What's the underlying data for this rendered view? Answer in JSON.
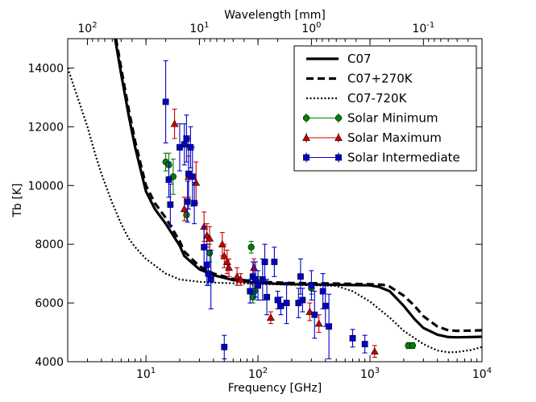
{
  "chart_data": {
    "type": "scatter",
    "title": "",
    "xlabel": "Frequency [GHz]",
    "ylabel": "Tb [K]",
    "top_xlabel": "Wavelength [mm]",
    "xscale": "log",
    "xlim": [
      2,
      10000
    ],
    "ylim": [
      4000,
      15000
    ],
    "x_ticks": [
      {
        "v": 10,
        "base": "10",
        "exp": "1"
      },
      {
        "v": 100,
        "base": "10",
        "exp": "2"
      },
      {
        "v": 1000,
        "base": "10",
        "exp": "3"
      },
      {
        "v": 10000,
        "base": "10",
        "exp": "4"
      }
    ],
    "top_ticks": [
      {
        "f": 3,
        "base": "10",
        "exp": "2"
      },
      {
        "f": 30,
        "base": "10",
        "exp": "1"
      },
      {
        "f": 300,
        "base": "10",
        "exp": "0"
      },
      {
        "f": 3000,
        "base": "10",
        "exp": "-1"
      }
    ],
    "y_ticks": [
      4000,
      6000,
      8000,
      10000,
      12000,
      14000
    ],
    "y_tick_labels": [
      "4000",
      "6000",
      "8000",
      "10000",
      "12000",
      "14000"
    ],
    "legend_position": "top-right",
    "curves": [
      {
        "name": "C07",
        "style": "solid",
        "points": [
          [
            5.3,
            15000
          ],
          [
            6,
            13800
          ],
          [
            7,
            12400
          ],
          [
            8,
            11300
          ],
          [
            10,
            9800
          ],
          [
            12,
            9200
          ],
          [
            15,
            8700
          ],
          [
            20,
            7950
          ],
          [
            22,
            7600
          ],
          [
            30,
            7150
          ],
          [
            40,
            6950
          ],
          [
            60,
            6780
          ],
          [
            100,
            6680
          ],
          [
            200,
            6640
          ],
          [
            500,
            6620
          ],
          [
            1000,
            6600
          ],
          [
            1200,
            6550
          ],
          [
            1500,
            6400
          ],
          [
            2000,
            5900
          ],
          [
            2500,
            5450
          ],
          [
            3000,
            5150
          ],
          [
            4000,
            4920
          ],
          [
            5000,
            4840
          ],
          [
            6000,
            4830
          ],
          [
            8000,
            4840
          ],
          [
            10000,
            4850
          ]
        ]
      },
      {
        "name": "C07+270K",
        "style": "dashed",
        "points": [
          [
            5.4,
            15000
          ],
          [
            6,
            14000
          ],
          [
            7,
            12600
          ],
          [
            8,
            11500
          ],
          [
            10,
            10000
          ],
          [
            12,
            9400
          ],
          [
            15,
            8900
          ],
          [
            20,
            8100
          ],
          [
            22,
            7750
          ],
          [
            30,
            7250
          ],
          [
            40,
            7000
          ],
          [
            60,
            6820
          ],
          [
            100,
            6720
          ],
          [
            200,
            6680
          ],
          [
            500,
            6660
          ],
          [
            1000,
            6640
          ],
          [
            1300,
            6620
          ],
          [
            1500,
            6560
          ],
          [
            2000,
            6250
          ],
          [
            2500,
            5900
          ],
          [
            3000,
            5550
          ],
          [
            4000,
            5200
          ],
          [
            5000,
            5070
          ],
          [
            6000,
            5050
          ],
          [
            8000,
            5060
          ],
          [
            10000,
            5070
          ]
        ]
      },
      {
        "name": "C07-720K",
        "style": "dotted",
        "points": [
          [
            2,
            14000
          ],
          [
            2.5,
            12900
          ],
          [
            3,
            12000
          ],
          [
            3.5,
            11100
          ],
          [
            4,
            10400
          ],
          [
            5,
            9400
          ],
          [
            6,
            8700
          ],
          [
            7,
            8200
          ],
          [
            8,
            7900
          ],
          [
            10,
            7500
          ],
          [
            15,
            7000
          ],
          [
            20,
            6800
          ],
          [
            30,
            6720
          ],
          [
            50,
            6680
          ],
          [
            100,
            6650
          ],
          [
            200,
            6620
          ],
          [
            500,
            6580
          ],
          [
            700,
            6400
          ],
          [
            1000,
            6050
          ],
          [
            1500,
            5500
          ],
          [
            2000,
            5050
          ],
          [
            3000,
            4600
          ],
          [
            4000,
            4380
          ],
          [
            5000,
            4320
          ],
          [
            6000,
            4330
          ],
          [
            8000,
            4400
          ],
          [
            10000,
            4500
          ]
        ]
      }
    ],
    "series": [
      {
        "name": "Solar Minimum",
        "marker": "circle",
        "color": "#008000",
        "points": [
          [
            15,
            10800,
            300
          ],
          [
            16,
            10700,
            400
          ],
          [
            17.5,
            10300,
            600
          ],
          [
            23,
            9000,
            200
          ],
          [
            37,
            7700,
            300
          ],
          [
            87,
            7900,
            200
          ],
          [
            90,
            6200,
            200
          ],
          [
            93,
            6400,
            200
          ],
          [
            100,
            6700,
            200
          ],
          [
            300,
            6500,
            200
          ],
          [
            2200,
            4550,
            100
          ],
          [
            2400,
            4550,
            100
          ]
        ]
      },
      {
        "name": "Solar Maximum",
        "marker": "triangle",
        "color": "#cc0000",
        "points": [
          [
            18,
            12100,
            500
          ],
          [
            22,
            9200,
            400
          ],
          [
            24,
            10300,
            700
          ],
          [
            28,
            10100,
            700
          ],
          [
            33,
            8600,
            500
          ],
          [
            35,
            8300,
            400
          ],
          [
            37,
            8200,
            400
          ],
          [
            48,
            8000,
            400
          ],
          [
            50,
            7600,
            400
          ],
          [
            53,
            7400,
            400
          ],
          [
            55,
            7200,
            300
          ],
          [
            65,
            6900,
            300
          ],
          [
            70,
            6800,
            200
          ],
          [
            92,
            7200,
            300
          ],
          [
            130,
            5500,
            200
          ],
          [
            290,
            5700,
            300
          ],
          [
            350,
            5300,
            300
          ],
          [
            1100,
            4350,
            200
          ]
        ]
      },
      {
        "name": "Solar Intermediate",
        "marker": "square",
        "color": "#0000cc",
        "points": [
          [
            15,
            12850,
            1400
          ],
          [
            16,
            10200,
            600
          ],
          [
            16.5,
            9350,
            700
          ],
          [
            20,
            11300,
            800
          ],
          [
            22,
            11400,
            700
          ],
          [
            23,
            11600,
            800
          ],
          [
            23.5,
            9450,
            700
          ],
          [
            24,
            10400,
            1200
          ],
          [
            25,
            11300,
            700
          ],
          [
            26,
            10300,
            1000
          ],
          [
            27,
            9400,
            700
          ],
          [
            33,
            7900,
            700
          ],
          [
            35,
            7300,
            700
          ],
          [
            36,
            7000,
            400
          ],
          [
            38,
            6800,
            1000
          ],
          [
            50,
            4500,
            400
          ],
          [
            85,
            6400,
            400
          ],
          [
            90,
            6900,
            500
          ],
          [
            95,
            6800,
            600
          ],
          [
            100,
            6600,
            500
          ],
          [
            110,
            6800,
            700
          ],
          [
            115,
            7400,
            600
          ],
          [
            120,
            6200,
            600
          ],
          [
            140,
            7400,
            500
          ],
          [
            150,
            6100,
            300
          ],
          [
            160,
            5900,
            300
          ],
          [
            180,
            6000,
            700
          ],
          [
            230,
            6000,
            500
          ],
          [
            240,
            6900,
            600
          ],
          [
            250,
            6100,
            400
          ],
          [
            300,
            6600,
            500
          ],
          [
            320,
            5600,
            800
          ],
          [
            380,
            6400,
            600
          ],
          [
            400,
            5900,
            700
          ],
          [
            430,
            5200,
            1100
          ],
          [
            700,
            4800,
            300
          ],
          [
            900,
            4600,
            300
          ]
        ]
      }
    ]
  }
}
